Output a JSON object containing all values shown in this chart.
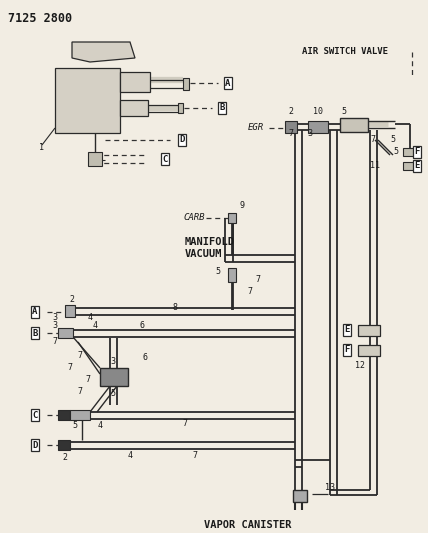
{
  "bg_color": "#f2ede3",
  "line_color": "#2a2a2a",
  "text_color": "#1a1a1a",
  "dash_color": "#333333",
  "title": "7125 2800",
  "labels": {
    "air_switch_valve": "AIR SWITCH VALVE",
    "egr": "EGR",
    "carb": "CARB",
    "manifold_vacuum": "MANIFOLD\nVACUUM",
    "vapor_canister": "VAPOR CANISTER"
  }
}
